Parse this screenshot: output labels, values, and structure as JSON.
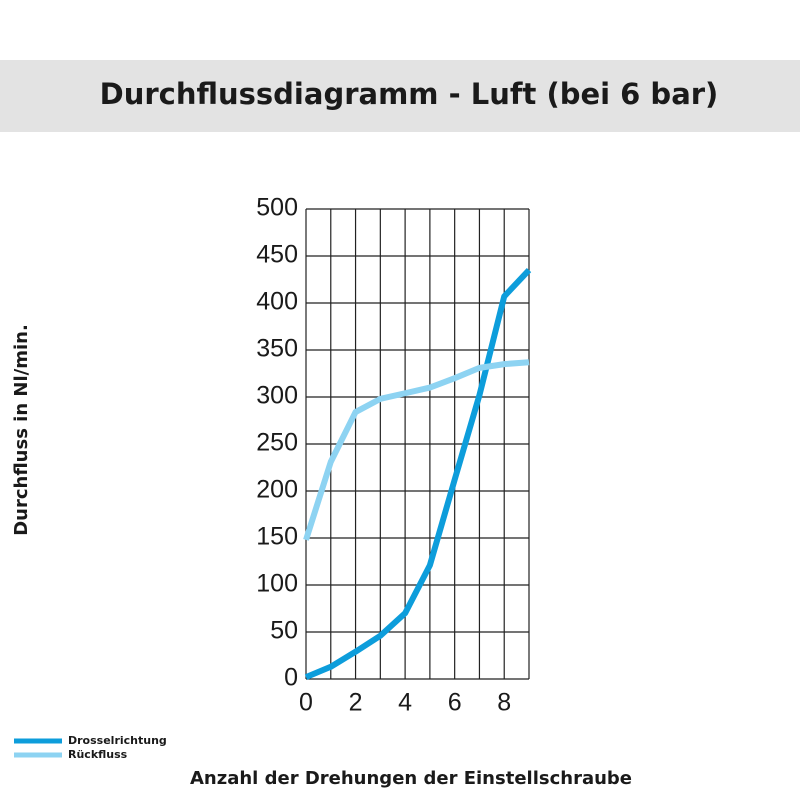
{
  "chart_data": {
    "type": "line",
    "title": "Durchflussdiagramm - Luft (bei 6 bar)",
    "x_label": "Anzahl der Drehungen der Einstellschraube",
    "y_label": "Durchfluss in Nl/min.",
    "x": [
      0,
      1,
      2,
      3,
      4,
      5,
      6,
      7,
      8,
      9
    ],
    "series": [
      {
        "name": "Drosselrichtung",
        "color": "#0d9ddb",
        "values": [
          2,
          13,
          29,
          46,
          70,
          121,
          212,
          302,
          407,
          435
        ]
      },
      {
        "name": "Rückfluss",
        "color": "#8dd3f2",
        "values": [
          148,
          231,
          284,
          298,
          304,
          310,
          320,
          331,
          335,
          337
        ]
      }
    ],
    "xlim": [
      0,
      9
    ],
    "xticks": [
      0,
      2,
      4,
      6,
      8
    ],
    "x_grid_step": 1,
    "ylim": [
      0,
      500
    ],
    "yticks": [
      0,
      50,
      100,
      150,
      200,
      250,
      300,
      350,
      400,
      450,
      500
    ],
    "grid": true,
    "legend": "bottom-left"
  }
}
